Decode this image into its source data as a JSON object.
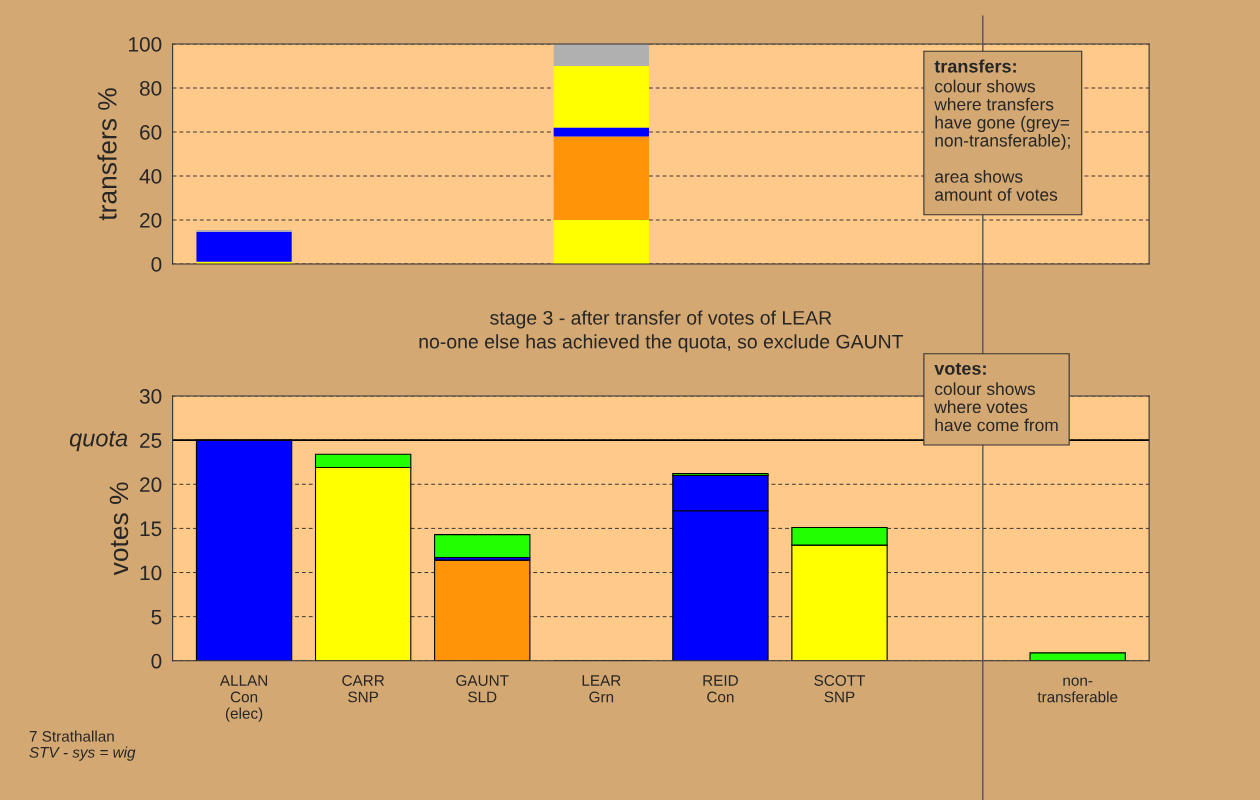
{
  "chart_data": [
    {
      "type": "bar",
      "stacked": true,
      "ylabel": "transfers %",
      "categories": [
        null,
        null,
        null,
        null,
        null,
        null,
        null,
        null
      ],
      "series": [
        {
          "color": "#ffff00",
          "values": [
            1,
            null,
            null,
            20,
            null,
            null,
            null,
            null
          ]
        },
        {
          "color": "#ff9408",
          "values": [
            null,
            null,
            null,
            38,
            null,
            null,
            null,
            null
          ]
        },
        {
          "color": "#0000ff",
          "values": [
            13.7,
            null,
            null,
            4,
            null,
            null,
            null,
            null
          ]
        },
        {
          "color": "#ffff00",
          "values": [
            null,
            null,
            null,
            28,
            null,
            null,
            null,
            null
          ]
        },
        {
          "color": "#b0b0b0",
          "values": [
            0.8,
            null,
            null,
            10,
            null,
            null,
            null,
            null
          ]
        }
      ],
      "ylim": [
        0,
        100
      ],
      "yticks": [
        0,
        20,
        40,
        60,
        80,
        100
      ],
      "grid": "y",
      "tick_labels": "y",
      "annotations": [
        "transfers:",
        "colour shows\nwhere transfers\nhave gone (grey=\nnon-transferable);",
        "area shows\namount of votes"
      ]
    },
    {
      "type": "bar",
      "stacked": true,
      "ylabel": "votes %",
      "title": "stage 3 - after transfer of votes of LEAR",
      "subtitle": "no-one else has achieved the quota, so exclude GAUNT",
      "categories": [
        "ALLAN\nCon\n(elec)",
        "CARR\nSNP",
        "GAUNT\nSLD",
        "LEAR\nGrn",
        "REID\nCon",
        "SCOTT\nSNP",
        null,
        "non-\ntransferable"
      ],
      "series": [
        {
          "colors": [
            "#0000ff",
            "#ffff00",
            "#ff9408",
            "#000000",
            "#0000ff",
            "#ffff00",
            "#22ff00",
            "#22ff00"
          ],
          "values": [
            25,
            21.9,
            11.4,
            0,
            17,
            13.1,
            null,
            0
          ]
        },
        {
          "color": "#0000ff",
          "values": [
            null,
            null,
            0.3,
            null,
            4,
            null,
            null,
            null
          ]
        },
        {
          "color": "#22ff00",
          "values": [
            null,
            1.5,
            2.6,
            null,
            0.2,
            2,
            null,
            0.9
          ]
        }
      ],
      "ylim": [
        0,
        30
      ],
      "yticks": [
        0,
        5,
        10,
        15,
        20,
        25,
        30
      ],
      "grid": "y",
      "ref_lines": [
        {
          "axis": "y",
          "value": 25,
          "label": "quota"
        }
      ],
      "annotations": [
        "votes:",
        "colour shows\nwhere votes\nhave come from",
        "7 Strathallan",
        "STV - sys = wig"
      ]
    }
  ]
}
